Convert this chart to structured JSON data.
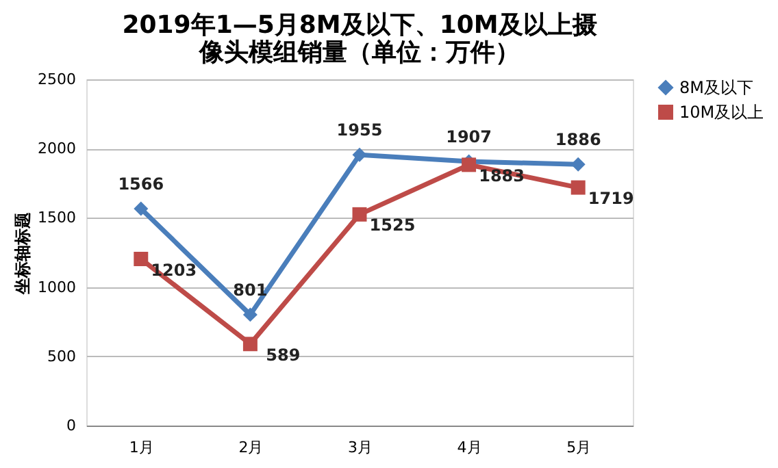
{
  "chart_data": {
    "type": "line",
    "title": [
      "2019年1—5月8M及以下、10M及以上摄",
      "像头模组销量（单位：万件）"
    ],
    "ylabel": "坐标轴标题",
    "categories": [
      "1月",
      "2月",
      "3月",
      "4月",
      "5月"
    ],
    "series": [
      {
        "name": "8M及以下",
        "color": "#4a7ebb",
        "marker": "diamond",
        "values": [
          1566,
          801,
          1955,
          1907,
          1886
        ]
      },
      {
        "name": "10M及以上",
        "color": "#be4b48",
        "marker": "square",
        "values": [
          1203,
          589,
          1525,
          1883,
          1719
        ]
      }
    ],
    "ylim": [
      0,
      2500
    ],
    "yticks": [
      0,
      500,
      1000,
      1500,
      2000,
      2500
    ],
    "grid": "y",
    "legend": "right",
    "data_labels": true,
    "line_style": "solid"
  }
}
